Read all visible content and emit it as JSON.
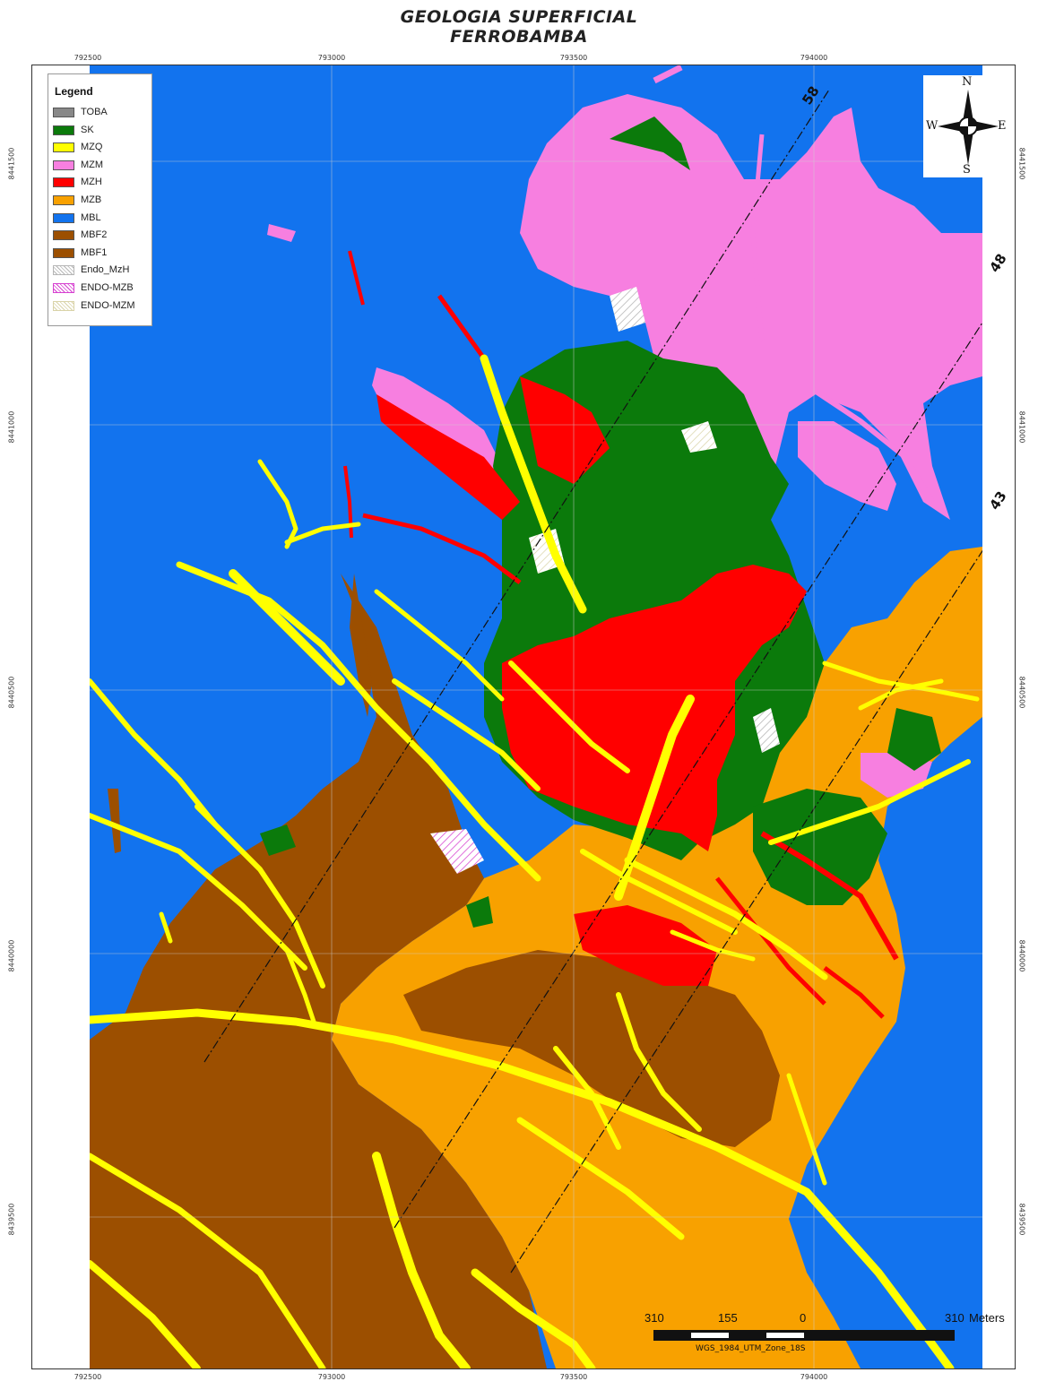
{
  "map": {
    "title": "GEOLOGIA SUPERFICIAL",
    "subtitle": "FERROBAMBA",
    "x_ticks_top": [
      "792500",
      "793000",
      "793500",
      "794000"
    ],
    "x_ticks_bottom": [
      "792500",
      "793000",
      "793500",
      "794000"
    ],
    "y_ticks_left": [
      "8441500",
      "8441000",
      "8440500",
      "8440000",
      "8439500"
    ],
    "y_ticks_right": [
      "8441500",
      "8441000",
      "8440500",
      "8440000",
      "8439500"
    ],
    "section_lines": [
      "58",
      "48",
      "43"
    ],
    "colors": {
      "mbl": "#1273ee",
      "mzm": "#f77fe0",
      "mzh": "#ff0000",
      "mzb": "#f8a100",
      "mzq": "#ffff00",
      "sk": "#0b7a0b",
      "mbf": "#9c4f00",
      "toba": "#888888",
      "endo": "#f2f0e8"
    }
  },
  "legend": {
    "title": "Legend",
    "items": [
      {
        "label": "TOBA",
        "color": "#888888",
        "pattern": "solid"
      },
      {
        "label": "SK",
        "color": "#0b7a0b",
        "pattern": "solid"
      },
      {
        "label": "MZQ",
        "color": "#ffff00",
        "pattern": "solid"
      },
      {
        "label": "MZM",
        "color": "#f77fe0",
        "pattern": "solid"
      },
      {
        "label": "MZH",
        "color": "#ff0000",
        "pattern": "solid"
      },
      {
        "label": "MZB",
        "color": "#f8a100",
        "pattern": "solid"
      },
      {
        "label": "MBL",
        "color": "#1273ee",
        "pattern": "solid"
      },
      {
        "label": "MBF2",
        "color": "#9c4f00",
        "pattern": "solid"
      },
      {
        "label": "MBF1",
        "color": "#9c4f00",
        "pattern": "solid"
      },
      {
        "label": "Endo_MzH",
        "color": "#c8c8c8",
        "pattern": "hatch"
      },
      {
        "label": "ENDO-MZB",
        "color": "#d63fd0",
        "pattern": "hatch"
      },
      {
        "label": "ENDO-MZM",
        "color": "#d9d3a8",
        "pattern": "hatch"
      }
    ]
  },
  "compass": {
    "n": "N",
    "s": "S",
    "e": "E",
    "w": "W",
    "icon": "north-arrow-icon"
  },
  "scale_bar": {
    "labels": [
      "310",
      "155",
      "0",
      "310"
    ],
    "unit": "Meters",
    "projection": "WGS_1984_UTM_Zone_18S"
  }
}
